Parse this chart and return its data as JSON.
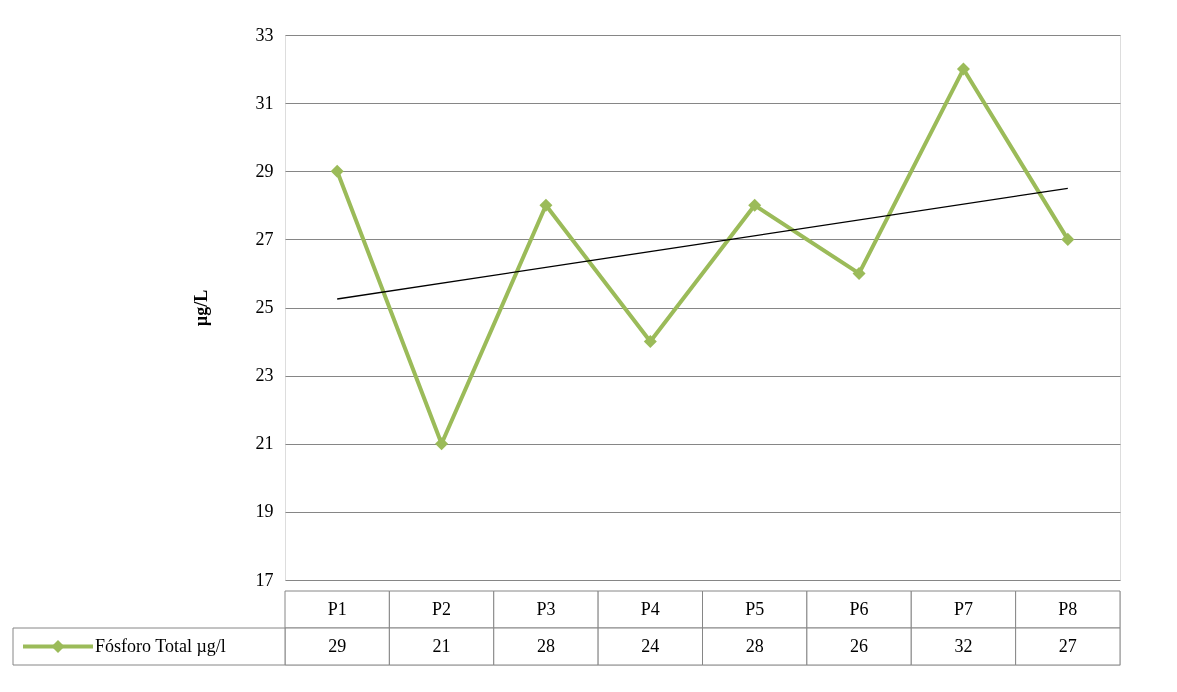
{
  "chart_data": {
    "type": "line",
    "ylabel": "µg/L",
    "categories": [
      "P1",
      "P2",
      "P3",
      "P4",
      "P5",
      "P6",
      "P7",
      "P8"
    ],
    "series": [
      {
        "name": "Fósforo Total µg/l",
        "color": "#9bbb59",
        "values": [
          29,
          21,
          28,
          24,
          28,
          26,
          32,
          27
        ],
        "value_labels": [
          "29",
          "21",
          "28",
          "24",
          "28",
          "26",
          "32",
          "27"
        ]
      },
      {
        "type": "line",
        "x": [
          "P1",
          "P8"
        ],
        "color": "#000000",
        "values": [
          25.25,
          28.5
        ],
        "marker": "none"
      }
    ],
    "ylim": [
      17,
      33
    ],
    "yticks": [
      17,
      19,
      21,
      23,
      25,
      27,
      29,
      31,
      33
    ],
    "grid": "y",
    "legend": "bottom",
    "line_style": "solid",
    "marker": "diamond"
  }
}
